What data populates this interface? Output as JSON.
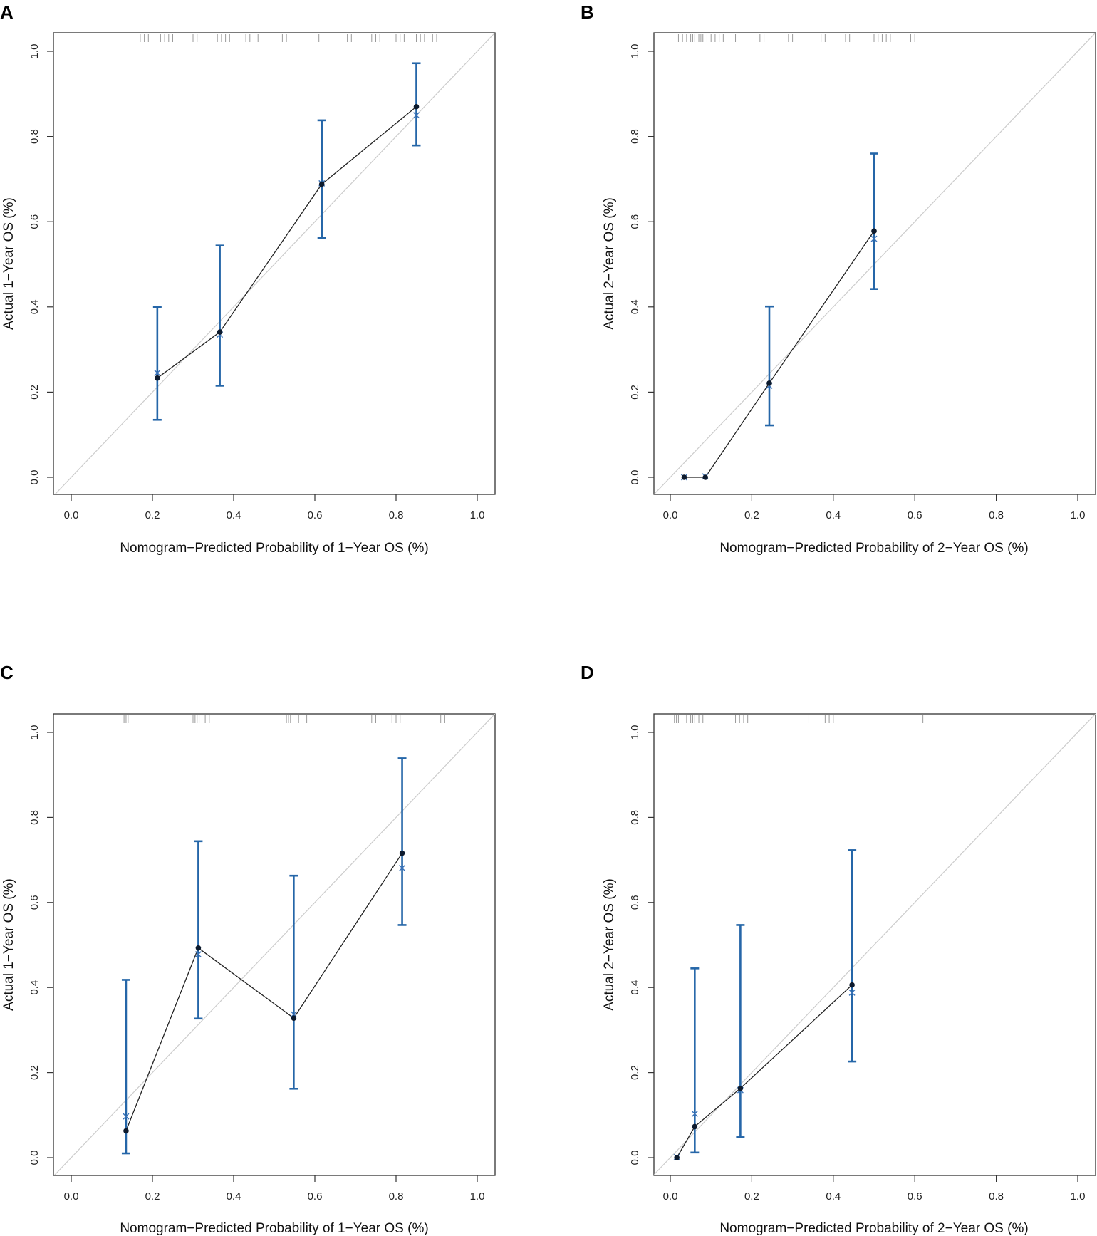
{
  "chart_data": [
    {
      "type": "calibration",
      "panel": "A",
      "xlabel": "Nomogram−Predicted Probability of 1−Year OS (%)",
      "ylabel": "Actual 1−Year OS (%)",
      "xlim": [
        0,
        1
      ],
      "ylim": [
        0,
        1
      ],
      "xticks": [
        "0.0",
        "0.2",
        "0.4",
        "0.6",
        "0.8",
        "1.0"
      ],
      "yticks": [
        "0.0",
        "0.2",
        "0.4",
        "0.6",
        "0.8",
        "1.0"
      ],
      "reference_line": "y = x",
      "predicted": [
        0.212,
        0.366,
        0.617,
        0.85
      ],
      "observed": [
        0.233,
        0.341,
        0.688,
        0.87
      ],
      "corrected": [
        0.245,
        0.335,
        0.69,
        0.85
      ],
      "ci_lower": [
        0.135,
        0.215,
        0.562,
        0.779
      ],
      "ci_upper": [
        0.4,
        0.544,
        0.838,
        0.972
      ],
      "rug": [
        0.17,
        0.18,
        0.19,
        0.22,
        0.23,
        0.24,
        0.25,
        0.3,
        0.31,
        0.36,
        0.37,
        0.38,
        0.39,
        0.43,
        0.44,
        0.45,
        0.46,
        0.52,
        0.53,
        0.61,
        0.68,
        0.69,
        0.74,
        0.75,
        0.76,
        0.8,
        0.81,
        0.82,
        0.85,
        0.86,
        0.87,
        0.89,
        0.9
      ]
    },
    {
      "type": "calibration",
      "panel": "B",
      "xlabel": "Nomogram−Predicted Probability of 2−Year OS (%)",
      "ylabel": "Actual 2−Year OS (%)",
      "xlim": [
        0,
        1
      ],
      "ylim": [
        0,
        1
      ],
      "xticks": [
        "0.0",
        "0.2",
        "0.4",
        "0.6",
        "0.8",
        "1.0"
      ],
      "yticks": [
        "0.0",
        "0.2",
        "0.4",
        "0.6",
        "0.8",
        "1.0"
      ],
      "reference_line": "y = x",
      "predicted": [
        0.034,
        0.086,
        0.243,
        0.5
      ],
      "observed": [
        0.0,
        0.0,
        0.221,
        0.578
      ],
      "corrected": [
        0.0,
        0.002,
        0.215,
        0.56
      ],
      "ci_lower": [
        null,
        null,
        0.122,
        0.442
      ],
      "ci_upper": [
        null,
        null,
        0.401,
        0.76
      ],
      "rug": [
        0.02,
        0.03,
        0.04,
        0.05,
        0.055,
        0.06,
        0.07,
        0.075,
        0.08,
        0.09,
        0.1,
        0.11,
        0.12,
        0.13,
        0.16,
        0.22,
        0.23,
        0.29,
        0.3,
        0.37,
        0.38,
        0.43,
        0.44,
        0.5,
        0.51,
        0.52,
        0.53,
        0.54,
        0.59,
        0.6
      ]
    },
    {
      "type": "calibration",
      "panel": "C",
      "xlabel": "Nomogram−Predicted Probability of 1−Year OS (%)",
      "ylabel": "Actual 1−Year OS (%)",
      "xlim": [
        0,
        1
      ],
      "ylim": [
        0,
        1
      ],
      "xticks": [
        "0.0",
        "0.2",
        "0.4",
        "0.6",
        "0.8",
        "1.0"
      ],
      "yticks": [
        "0.0",
        "0.2",
        "0.4",
        "0.6",
        "0.8",
        "1.0"
      ],
      "reference_line": "y = x",
      "predicted": [
        0.135,
        0.313,
        0.548,
        0.815
      ],
      "observed": [
        0.063,
        0.493,
        0.328,
        0.716
      ],
      "corrected": [
        0.097,
        0.478,
        0.337,
        0.681
      ],
      "ci_lower": [
        0.01,
        0.327,
        0.162,
        0.547
      ],
      "ci_upper": [
        0.418,
        0.744,
        0.663,
        0.939
      ],
      "rug": [
        0.13,
        0.135,
        0.14,
        0.3,
        0.305,
        0.31,
        0.315,
        0.33,
        0.34,
        0.53,
        0.535,
        0.54,
        0.56,
        0.58,
        0.74,
        0.75,
        0.79,
        0.8,
        0.81,
        0.91,
        0.92
      ]
    },
    {
      "type": "calibration",
      "panel": "D",
      "xlabel": "Nomogram−Predicted Probability of 2−Year OS (%)",
      "ylabel": "Actual 2−Year OS (%)",
      "xlim": [
        0,
        1
      ],
      "ylim": [
        0,
        1
      ],
      "xticks": [
        "0.0",
        "0.2",
        "0.4",
        "0.6",
        "0.8",
        "1.0"
      ],
      "yticks": [
        "0.0",
        "0.2",
        "0.4",
        "0.6",
        "0.8",
        "1.0"
      ],
      "reference_line": "y = x",
      "predicted": [
        0.016,
        0.06,
        0.172,
        0.446
      ],
      "observed": [
        0.0,
        0.073,
        0.163,
        0.406
      ],
      "corrected": [
        0.001,
        0.103,
        0.159,
        0.388
      ],
      "ci_lower": [
        null,
        0.012,
        0.048,
        0.226
      ],
      "ci_upper": [
        null,
        0.445,
        0.547,
        0.723
      ],
      "rug": [
        0.01,
        0.015,
        0.02,
        0.04,
        0.05,
        0.055,
        0.06,
        0.07,
        0.08,
        0.16,
        0.17,
        0.18,
        0.19,
        0.34,
        0.38,
        0.39,
        0.4,
        0.62
      ]
    }
  ]
}
